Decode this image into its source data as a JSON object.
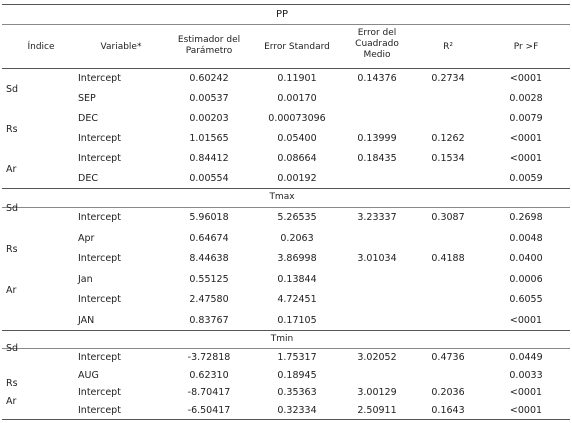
{
  "header": {
    "indice": "Índice",
    "variable": "Variable*",
    "estimador": "Estimador del Parámetro",
    "error_standard": "Error Standard",
    "error_cuadrado": "Error del Cuadrado Medio",
    "r2": "R²",
    "pr": "Pr >F"
  },
  "sections": [
    {
      "title": "PP",
      "rows": [
        {
          "indice": "",
          "variable": "Intercept",
          "estimador": "0.60242",
          "error_std": "0.11901",
          "ecm": "0.14376",
          "r2": "0.2734",
          "pr": "<0001"
        },
        {
          "indice": "Sd",
          "variable": "SEP",
          "estimador": "0.00537",
          "error_std": "0.00170",
          "ecm": "",
          "r2": "",
          "pr": "0.0028"
        },
        {
          "indice": "",
          "variable": "DEC",
          "estimador": "0.00203",
          "error_std": "0.00073096",
          "ecm": "",
          "r2": "",
          "pr": "0.0079"
        },
        {
          "indice": "Rs",
          "variable": "Intercept",
          "estimador": "1.01565",
          "error_std": "0.05400",
          "ecm": "0.13999",
          "r2": "0.1262",
          "pr": "<0001"
        },
        {
          "indice": "",
          "variable": "Intercept",
          "estimador": "0.84412",
          "error_std": "0.08664",
          "ecm": "0.18435",
          "r2": "0.1534",
          "pr": "<0001"
        },
        {
          "indice": "Ar",
          "variable": "DEC",
          "estimador": "0.00554",
          "error_std": "0.00192",
          "ecm": "",
          "r2": "",
          "pr": "0.0059"
        }
      ]
    },
    {
      "title": "Tmax",
      "rows": [
        {
          "indice": "Sd",
          "variable": "Intercept",
          "estimador": "5.96018",
          "error_std": "5.26535",
          "ecm": "3.23337",
          "r2": "0.3087",
          "pr": "0.2698"
        },
        {
          "indice": "",
          "variable": "Apr",
          "estimador": "0.64674",
          "error_std": "0.2063",
          "ecm": "",
          "r2": "",
          "pr": "0.0048"
        },
        {
          "indice": "Rs",
          "variable": "Intercept",
          "estimador": "8.44638",
          "error_std": "3.86998",
          "ecm": "3.01034",
          "r2": "0.4188",
          "pr": "0.0400"
        },
        {
          "indice": "",
          "variable": "Jan",
          "estimador": "0.55125",
          "error_std": "0.13844",
          "ecm": "",
          "r2": "",
          "pr": "0.0006"
        },
        {
          "indice": "Ar",
          "variable": "Intercept",
          "estimador": "2.47580",
          "error_std": "4.72451",
          "ecm": "",
          "r2": "",
          "pr": "0.6055"
        },
        {
          "indice": "",
          "variable": "JAN",
          "estimador": "0.83767",
          "error_std": "0.17105",
          "ecm": "",
          "r2": "",
          "pr": "<0001"
        }
      ]
    },
    {
      "title": "Tmin",
      "rows": [
        {
          "indice": "Sd",
          "variable": "Intercept",
          "estimador": "-3.72818",
          "error_std": "1.75317",
          "ecm": "3.02052",
          "r2": "0.4736",
          "pr": "0.0449"
        },
        {
          "indice": "",
          "variable": "AUG",
          "estimador": "0.62310",
          "error_std": "0.18945",
          "ecm": "",
          "r2": "",
          "pr": "0.0033"
        },
        {
          "indice": "Rs",
          "variable": "Intercept",
          "estimador": "-8.70417",
          "error_std": "0.35363",
          "ecm": "3.00129",
          "r2": "0.2036",
          "pr": "<0001"
        },
        {
          "indice": "Ar",
          "variable": "Intercept",
          "estimador": "-6.50417",
          "error_std": "0.32334",
          "ecm": "2.50911",
          "r2": "0.1643",
          "pr": "<0001"
        }
      ]
    }
  ]
}
